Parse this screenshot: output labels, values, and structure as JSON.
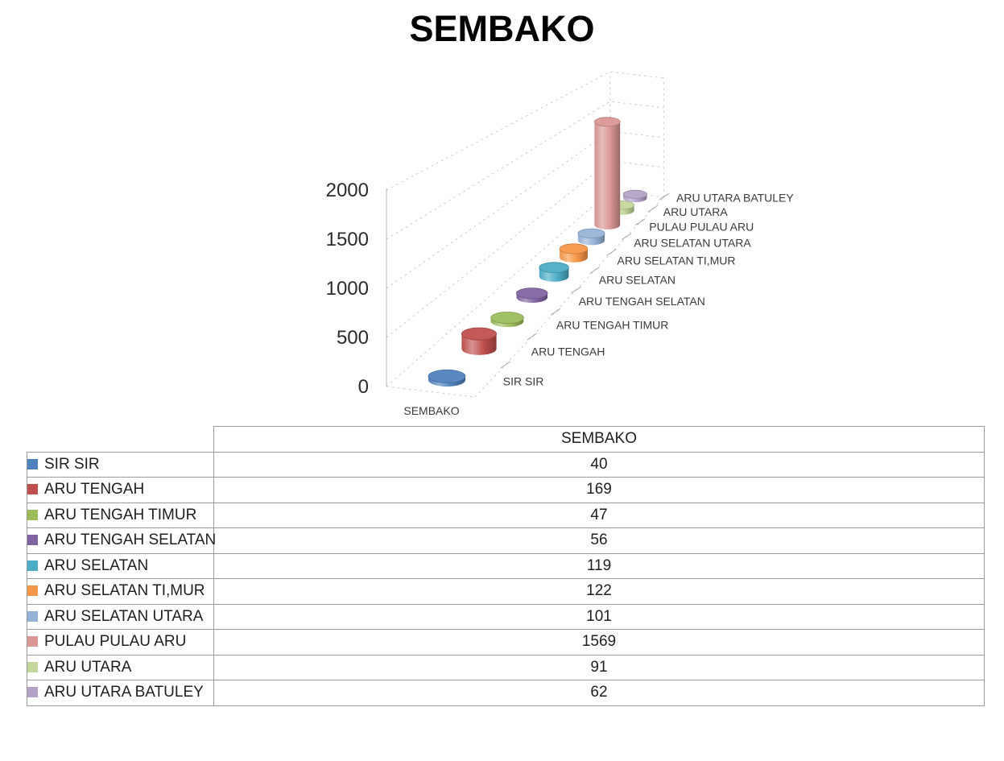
{
  "title": "SEMBAKO",
  "chart_data": {
    "type": "bar",
    "variant": "3d-cylinder",
    "title": "SEMBAKO",
    "series_label": "SEMBAKO",
    "xlabel": "SEMBAKO",
    "categories": [
      "SIR SIR",
      "ARU TENGAH",
      "ARU TENGAH TIMUR",
      "ARU TENGAH SELATAN",
      "ARU SELATAN",
      "ARU SELATAN TI,MUR",
      "ARU SELATAN UTARA",
      "PULAU PULAU ARU",
      "ARU UTARA",
      "ARU UTARA BATULEY"
    ],
    "values": [
      40,
      169,
      47,
      56,
      119,
      122,
      101,
      1569,
      91,
      62
    ],
    "colors": [
      "#4F81BD",
      "#C0504D",
      "#9BBB59",
      "#8064A2",
      "#4BACC6",
      "#F79646",
      "#95B3D7",
      "#D99694",
      "#C3D69B",
      "#B3A2C7"
    ],
    "yticks": [
      0,
      500,
      1000,
      1500,
      2000
    ],
    "ylim": [
      0,
      2000
    ],
    "grid": true,
    "legend_position": "table-rows"
  },
  "table": {
    "header": "SEMBAKO"
  },
  "style": {
    "grid_color": "#c9c9c9",
    "axis_line_color": "#b3b3b3",
    "tick_text_color": "#2b2b2b",
    "label_text_color": "#3a3a3a",
    "table_border_color": "#9a9a9a",
    "leader_dash_color": "#a8a8a8"
  }
}
